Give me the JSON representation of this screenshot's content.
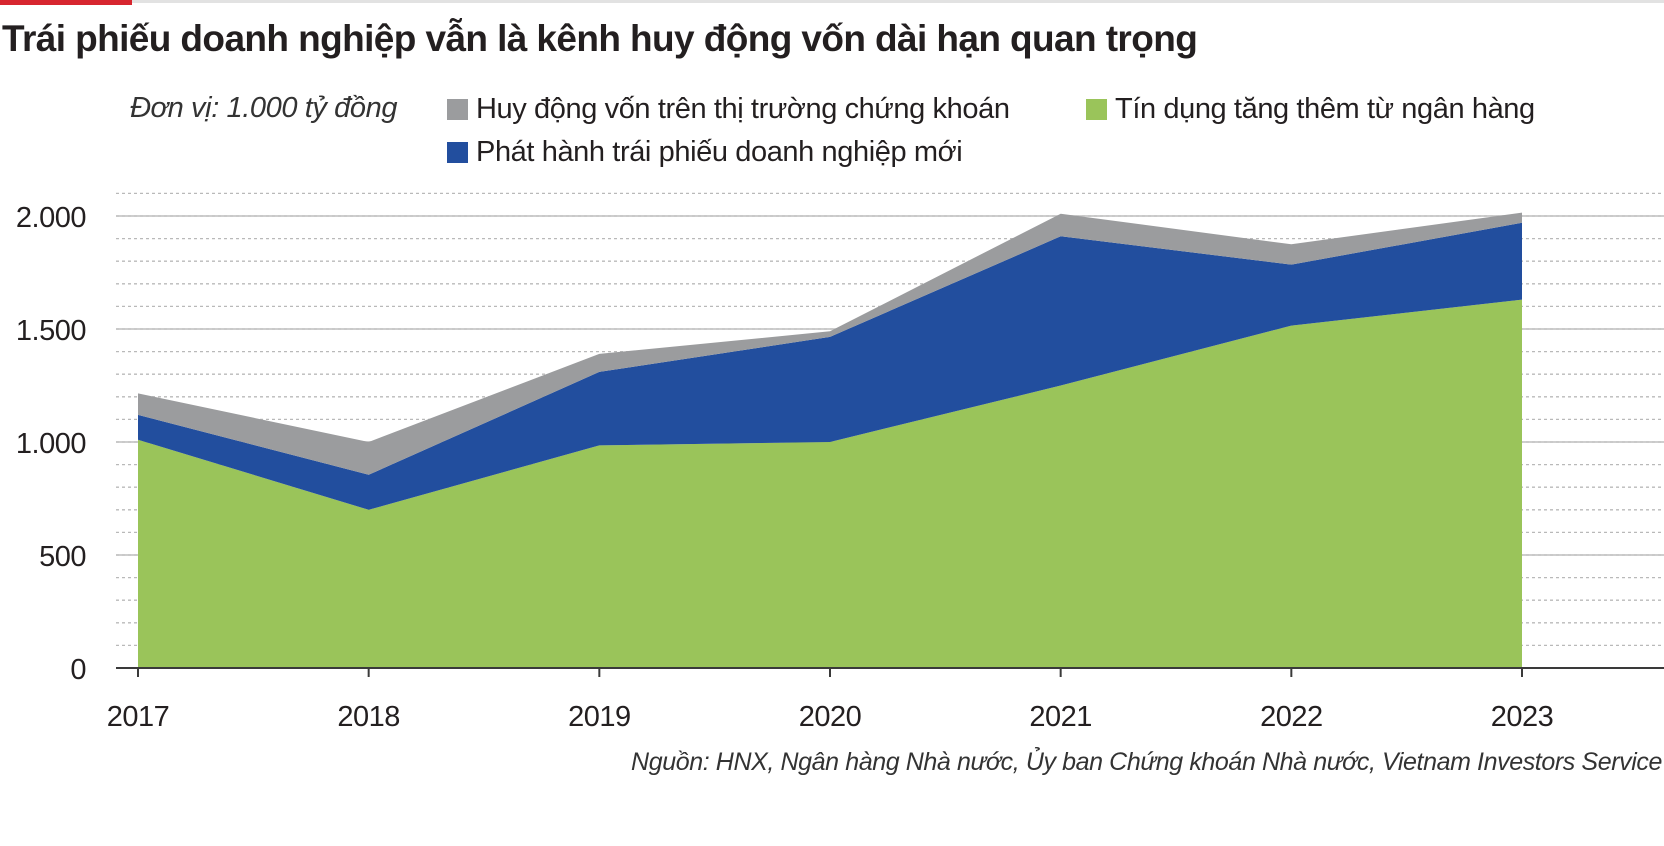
{
  "title": "Trái phiếu doanh nghiệp vẫn là kênh huy động vốn dài hạn quan trọng",
  "unit_label": "Đơn vị: 1.000 tỷ đồng",
  "source": "Nguồn: HNX, Ngân hàng Nhà nước, Ủy ban Chứng khoán Nhà nước, Vietnam Investors Service",
  "colors": {
    "accent": "#d7262f",
    "stock_market": "#9b9c9e",
    "corporate_bonds": "#224e9e",
    "bank_credit": "#9ac45a"
  },
  "legend": [
    {
      "label": "Huy động vốn trên thị trường chứng khoán",
      "color": "#9b9c9e"
    },
    {
      "label": "Tín dụng tăng thêm từ ngân hàng",
      "color": "#9ac45a"
    },
    {
      "label": "Phát hành trái phiếu doanh nghiệp mới",
      "color": "#224e9e"
    }
  ],
  "chart_data": {
    "type": "area",
    "stacked": true,
    "title": "Trái phiếu doanh nghiệp vẫn là kênh huy động vốn dài hạn quan trọng",
    "unit": "Đơn vị: 1.000 tỷ đồng",
    "x": [
      "2017",
      "2018",
      "2019",
      "2020",
      "2021",
      "2022",
      "2023"
    ],
    "series": [
      {
        "name": "Tín dụng tăng thêm từ ngân hàng",
        "color": "#9ac45a",
        "values": [
          1010,
          700,
          985,
          1000,
          1250,
          1515,
          1630
        ]
      },
      {
        "name": "Phát hành trái phiếu doanh nghiệp mới",
        "color": "#224e9e",
        "values": [
          110,
          155,
          325,
          465,
          660,
          270,
          340
        ]
      },
      {
        "name": "Huy động vốn trên thị trường chứng khoán",
        "color": "#9b9c9e",
        "values": [
          95,
          145,
          80,
          25,
          100,
          90,
          45
        ]
      }
    ],
    "ylim": [
      0,
      2000
    ],
    "yticks": [
      0,
      500,
      1000,
      1500,
      2000
    ],
    "ytick_labels": [
      "0",
      "500",
      "1.000",
      "1.500",
      "2.000"
    ],
    "grid": true,
    "legend_position": "top"
  }
}
